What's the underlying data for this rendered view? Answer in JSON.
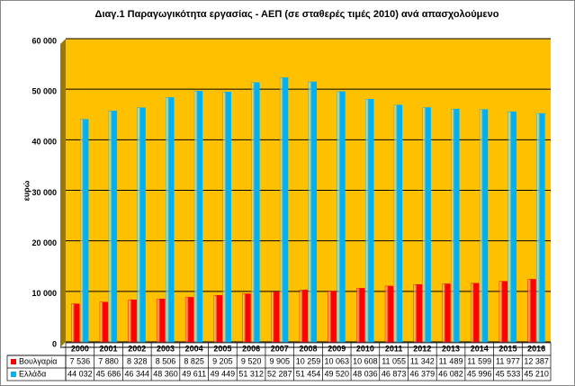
{
  "chart_data": {
    "type": "bar",
    "title": "Διαγ.1  Παραγωγικότητα εργασίας - ΑΕΠ (σε σταθερές τιμές 2010) ανά απασχολούμενο",
    "y_label": "ευρώ",
    "categories": [
      "2000",
      "2001",
      "2002",
      "2003",
      "2004",
      "2005",
      "2006",
      "2007",
      "2008",
      "2009",
      "2010",
      "2011",
      "2012",
      "2013",
      "2014",
      "2015",
      "2016"
    ],
    "series": [
      {
        "name": "Βουλγαρία",
        "color": "#ff0000",
        "values": [
          7536,
          7880,
          8328,
          8506,
          8825,
          9205,
          9520,
          9905,
          10259,
          10063,
          10608,
          11055,
          11342,
          11489,
          11599,
          11977,
          12387
        ],
        "value_labels": [
          "7 536",
          "7 880",
          "8 328",
          "8 506",
          "8 825",
          "9 205",
          "9 520",
          "9 905",
          "10 259",
          "10 063",
          "10 608",
          "11 055",
          "11 342",
          "11 489",
          "11 599",
          "11 977",
          "12 387"
        ]
      },
      {
        "name": "Ελλάδα",
        "color": "#00b0f0",
        "values": [
          44032,
          45686,
          46344,
          48360,
          49611,
          49449,
          51312,
          52287,
          51454,
          49520,
          48036,
          46873,
          46379,
          46082,
          45996,
          45533,
          45210
        ],
        "value_labels": [
          "44 032",
          "45 686",
          "46 344",
          "48 360",
          "49 611",
          "49 449",
          "51 312",
          "52 287",
          "51 454",
          "49 520",
          "48 036",
          "46 873",
          "46 379",
          "46 082",
          "45 996",
          "45 533",
          "45 210"
        ]
      }
    ],
    "ylim": [
      0,
      60000
    ],
    "yticks": [
      0,
      {
        "value": 10000,
        "label": "10 000"
      },
      {
        "value": 20000,
        "label": "20 000"
      },
      {
        "value": 30000,
        "label": "30 000"
      },
      {
        "value": 40000,
        "label": "40 000"
      },
      {
        "value": 50000,
        "label": "50 000"
      },
      {
        "value": 60000,
        "label": "60 000"
      }
    ],
    "grid": true,
    "background": "#ffc000"
  }
}
